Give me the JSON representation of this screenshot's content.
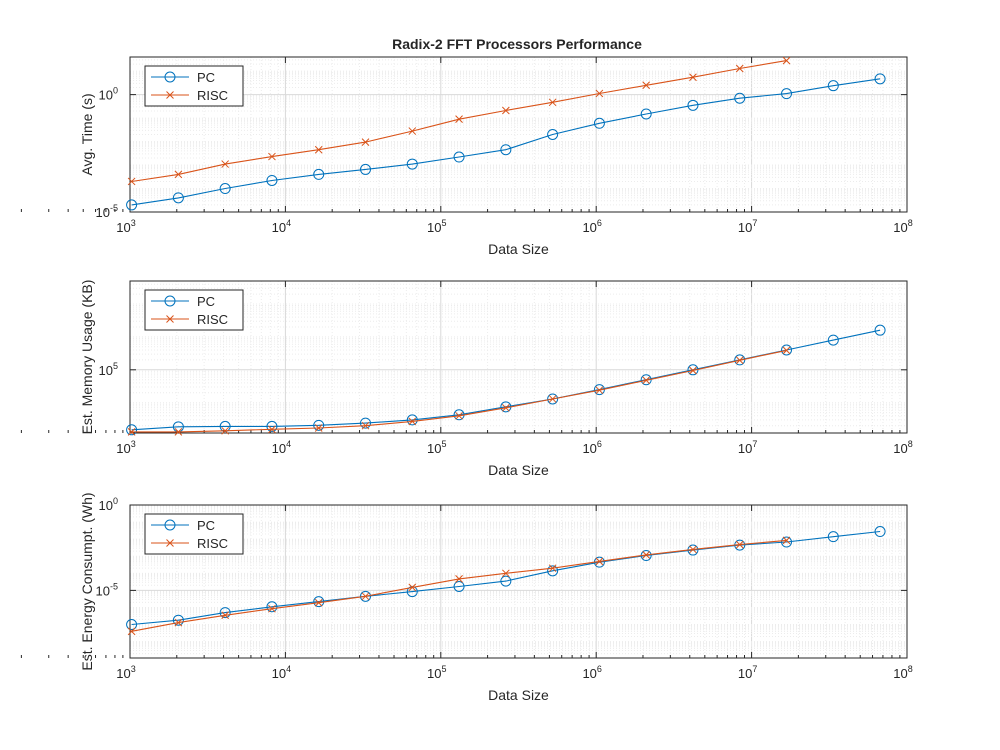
{
  "figure_title": "Radix-2 FFT Processors Performance",
  "colors": {
    "pc": "#0072BD",
    "risc": "#D95319",
    "grid": "#e6e6e6",
    "axis": "#262626"
  },
  "chart_data": [
    {
      "type": "line",
      "title": "Radix-2 FFT Processors Performance",
      "xlabel": "Data Size",
      "ylabel": "Avg. Time (s)",
      "xscale": "log",
      "yscale": "log",
      "xlim": [
        1000,
        100000000
      ],
      "ylim": [
        1e-05,
        40
      ],
      "yticks": [
        1e-05,
        1
      ],
      "ytick_labels": [
        {
          "base": "10",
          "exp": "-5"
        },
        {
          "base": "10",
          "exp": "0"
        }
      ],
      "grid": true,
      "legend": "top-left",
      "series": [
        {
          "name": "PC",
          "marker": "circle",
          "x": [
            1024,
            2048,
            4096,
            8192,
            16384,
            32768,
            65536,
            131072,
            262144,
            524288,
            1048576,
            2097152,
            4194304,
            8388608,
            16777216,
            33554432,
            67108864
          ],
          "y": [
            2e-05,
            4e-05,
            0.0001,
            0.00022,
            0.0004,
            0.00065,
            0.0011,
            0.0022,
            0.0045,
            0.02,
            0.06,
            0.15,
            0.35,
            0.7,
            1.1,
            2.4,
            4.7
          ]
        },
        {
          "name": "RISC",
          "marker": "x",
          "x": [
            1024,
            2048,
            4096,
            8192,
            16384,
            32768,
            65536,
            131072,
            262144,
            524288,
            1048576,
            2097152,
            4194304,
            8388608,
            16777216
          ],
          "y": [
            0.0002,
            0.0004,
            0.0011,
            0.0023,
            0.0045,
            0.0095,
            0.028,
            0.09,
            0.21,
            0.47,
            1.12,
            2.5,
            5.5,
            13,
            28
          ]
        }
      ]
    },
    {
      "type": "line",
      "xlabel": "Data Size",
      "ylabel": "Est. Memory Usage (KB)",
      "xscale": "log",
      "yscale": "log",
      "xlim": [
        1000,
        100000000
      ],
      "ylim": [
        1200,
        50000000
      ],
      "yticks": [
        100000
      ],
      "ytick_labels": [
        {
          "base": "10",
          "exp": "5"
        }
      ],
      "grid": true,
      "legend": "top-left",
      "series": [
        {
          "name": "PC",
          "marker": "circle",
          "x": [
            1024,
            2048,
            4096,
            8192,
            16384,
            32768,
            65536,
            131072,
            262144,
            524288,
            1048576,
            2097152,
            4194304,
            8388608,
            16777216,
            33554432,
            67108864
          ],
          "y": [
            1500,
            1850,
            1900,
            1900,
            2050,
            2400,
            3000,
            4300,
            7500,
            13000,
            25000,
            50000,
            100000,
            200000,
            400000,
            800000,
            1600000
          ]
        },
        {
          "name": "RISC",
          "marker": "x",
          "x": [
            1024,
            2048,
            4096,
            8192,
            16384,
            32768,
            65536,
            131072,
            262144,
            524288,
            1048576,
            2097152,
            4194304,
            8388608,
            16777216
          ],
          "y": [
            1300,
            1300,
            1400,
            1550,
            1700,
            2000,
            2700,
            4000,
            7000,
            13000,
            24000,
            48000,
            95000,
            195000,
            390000
          ]
        }
      ]
    },
    {
      "type": "line",
      "xlabel": "Data Size",
      "ylabel": "Est. Energy Consumpt. (Wh)",
      "xscale": "log",
      "yscale": "log",
      "xlim": [
        1000,
        100000000
      ],
      "ylim": [
        1.1e-09,
        1
      ],
      "yticks": [
        1e-05,
        1
      ],
      "ytick_labels": [
        {
          "base": "10",
          "exp": "-5"
        },
        {
          "base": "10",
          "exp": "0"
        }
      ],
      "grid": true,
      "legend": "top-left",
      "series": [
        {
          "name": "PC",
          "marker": "circle",
          "x": [
            1024,
            2048,
            4096,
            8192,
            16384,
            32768,
            65536,
            131072,
            262144,
            524288,
            1048576,
            2097152,
            4194304,
            8388608,
            16777216,
            33554432,
            67108864
          ],
          "y": [
            1e-07,
            1.8e-07,
            5e-07,
            1.1e-06,
            2.2e-06,
            4.5e-06,
            8.5e-06,
            1.7e-05,
            3.5e-05,
            0.00014,
            0.00045,
            0.0011,
            0.0023,
            0.0045,
            0.0068,
            0.014,
            0.028
          ]
        },
        {
          "name": "RISC",
          "marker": "x",
          "x": [
            1024,
            2048,
            4096,
            8192,
            16384,
            32768,
            65536,
            131072,
            262144,
            524288,
            1048576,
            2097152,
            4194304,
            8388608,
            16777216
          ],
          "y": [
            4e-08,
            1.3e-07,
            3.5e-07,
            8.5e-07,
            1.9e-06,
            4.5e-06,
            1.5e-05,
            4.7e-05,
            0.0001,
            0.0002,
            0.0005,
            0.0012,
            0.0025,
            0.0048,
            0.0085
          ]
        }
      ]
    }
  ]
}
